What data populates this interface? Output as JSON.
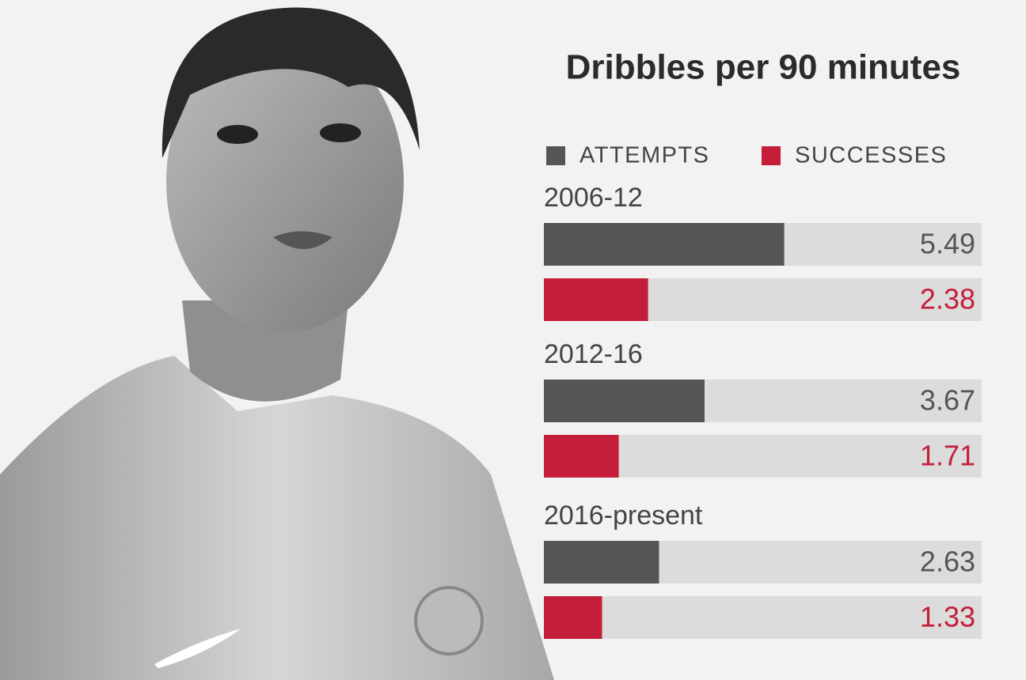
{
  "chart_data": {
    "type": "hbar-grouped",
    "title": "Dribbles per 90 minutes",
    "categories": [
      "2006-12",
      "2012-16",
      "2016-present"
    ],
    "series": [
      {
        "name": "ATTEMPTS",
        "color": "#555555",
        "values": [
          5.49,
          3.67,
          2.63
        ]
      },
      {
        "name": "SUCCESSES",
        "color": "#c41e3a",
        "values": [
          2.38,
          1.71,
          1.33
        ]
      }
    ],
    "xlim": [
      0,
      10
    ]
  }
}
